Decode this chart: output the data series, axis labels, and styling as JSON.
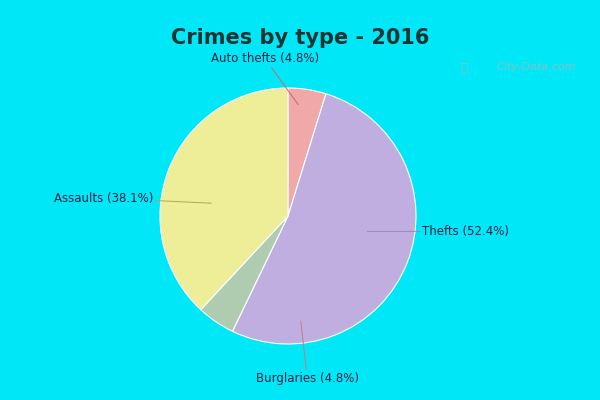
{
  "title": "Crimes by type - 2016",
  "title_fontsize": 15,
  "labels": [
    "Auto thefts",
    "Thefts",
    "Burglaries",
    "Assaults"
  ],
  "values": [
    4.8,
    52.4,
    4.8,
    38.1
  ],
  "colors": [
    "#f0a8a8",
    "#c0aee0",
    "#b0ccb0",
    "#eeee99"
  ],
  "label_texts": [
    "Auto thefts (4.8%)",
    "Thefts (52.4%)",
    "Burglaries (4.8%)",
    "Assaults (38.1%)"
  ],
  "bg_cyan": "#00e8f8",
  "bg_inner": "#cceedd",
  "startangle": 90,
  "watermark": "City-Data.com",
  "label_color": "#222244",
  "label_fontsize": 8.5
}
